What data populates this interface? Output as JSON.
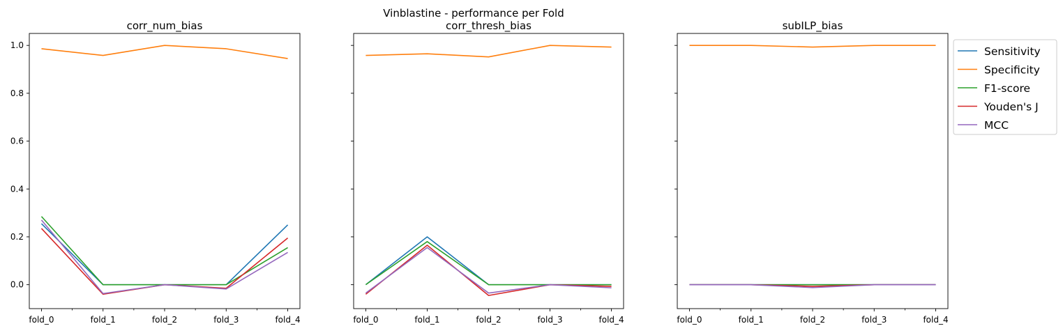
{
  "figure_title": "Vinblastine - performance per Fold",
  "colors": {
    "Sensitivity": "#1f77b4",
    "Specificity": "#ff7f0e",
    "F1-score": "#2ca02c",
    "Youden's J": "#d62728",
    "MCC": "#9467bd"
  },
  "chart_data": [
    {
      "type": "line",
      "title": "corr_num_bias",
      "categories": [
        "fold_0",
        "fold_1",
        "fold_2",
        "fold_3",
        "fold_4"
      ],
      "ylim": [
        -0.1,
        1.05
      ],
      "yticks": [
        "0.0",
        "0.2",
        "0.4",
        "0.6",
        "0.8",
        "1.0"
      ],
      "series": [
        {
          "name": "Sensitivity",
          "values": [
            0.255,
            0.0,
            0.0,
            0.0,
            0.25
          ]
        },
        {
          "name": "Specificity",
          "values": [
            0.986,
            0.958,
            1.0,
            0.986,
            0.945
          ]
        },
        {
          "name": "F1-score",
          "values": [
            0.285,
            0.0,
            0.0,
            0.0,
            0.155
          ]
        },
        {
          "name": "Youden's J",
          "values": [
            0.235,
            -0.04,
            0.0,
            -0.015,
            0.195
          ]
        },
        {
          "name": "MCC",
          "values": [
            0.27,
            -0.037,
            0.0,
            -0.018,
            0.135
          ]
        }
      ]
    },
    {
      "type": "line",
      "title": "corr_thresh_bias",
      "categories": [
        "fold_0",
        "fold_1",
        "fold_2",
        "fold_3",
        "fold_4"
      ],
      "ylim": [
        -0.1,
        1.05
      ],
      "yticks": [
        "0.0",
        "0.2",
        "0.4",
        "0.6",
        "0.8",
        "1.0"
      ],
      "series": [
        {
          "name": "Sensitivity",
          "values": [
            0.0,
            0.2,
            0.0,
            0.0,
            0.0
          ]
        },
        {
          "name": "Specificity",
          "values": [
            0.958,
            0.965,
            0.952,
            1.0,
            0.993
          ]
        },
        {
          "name": "F1-score",
          "values": [
            0.0,
            0.18,
            0.0,
            0.0,
            0.0
          ]
        },
        {
          "name": "Youden's J",
          "values": [
            -0.04,
            0.165,
            -0.045,
            0.0,
            -0.007
          ]
        },
        {
          "name": "MCC",
          "values": [
            -0.035,
            0.155,
            -0.035,
            0.0,
            -0.013
          ]
        }
      ]
    },
    {
      "type": "line",
      "title": "subILP_bias",
      "categories": [
        "fold_0",
        "fold_1",
        "fold_2",
        "fold_3",
        "fold_4"
      ],
      "ylim": [
        -0.1,
        1.05
      ],
      "yticks": [
        "0.0",
        "0.2",
        "0.4",
        "0.6",
        "0.8",
        "1.0"
      ],
      "legend": "outside-right",
      "series": [
        {
          "name": "Sensitivity",
          "values": [
            0.0,
            0.0,
            0.0,
            0.0,
            0.0
          ]
        },
        {
          "name": "Specificity",
          "values": [
            1.0,
            1.0,
            0.993,
            1.0,
            1.0
          ]
        },
        {
          "name": "F1-score",
          "values": [
            0.0,
            0.0,
            0.0,
            0.0,
            0.0
          ]
        },
        {
          "name": "Youden's J",
          "values": [
            0.0,
            0.0,
            -0.007,
            0.0,
            0.0
          ]
        },
        {
          "name": "MCC",
          "values": [
            0.0,
            0.0,
            -0.012,
            0.0,
            0.0
          ]
        }
      ]
    }
  ],
  "legend": {
    "entries": [
      "Sensitivity",
      "Specificity",
      "F1-score",
      "Youden's J",
      "MCC"
    ]
  }
}
